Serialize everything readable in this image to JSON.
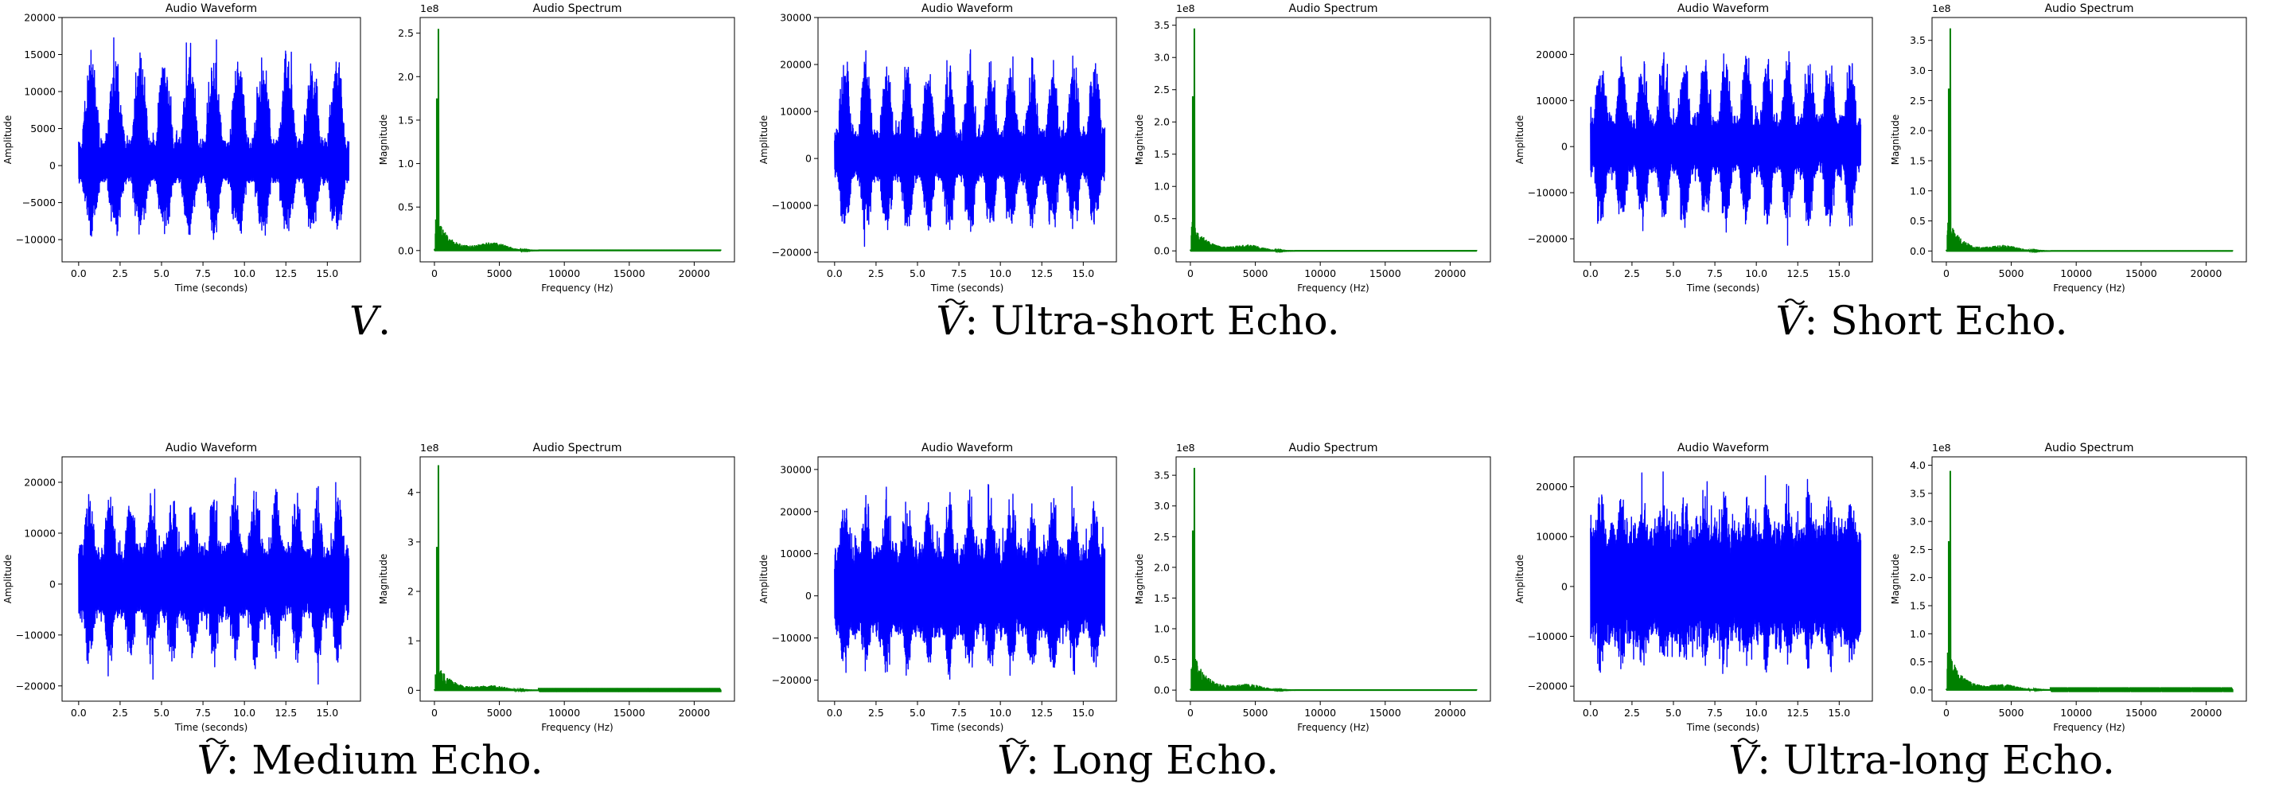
{
  "colors": {
    "waveform": "#0000ff",
    "spectrum": "#008000"
  },
  "chart_data": [
    {
      "caption": {
        "symbol": "V",
        "tilde": false,
        "text": "."
      },
      "waveform": {
        "type": "line",
        "title": "Audio Waveform",
        "xlabel": "Time (seconds)",
        "ylabel": "Amplitude",
        "xlim": [
          -1.0,
          17.0
        ],
        "ylim": [
          -13000,
          20000
        ],
        "xticks": [
          0.0,
          2.5,
          5.0,
          7.5,
          10.0,
          12.5,
          15.0
        ],
        "xtick_labels": [
          "0.0",
          "2.5",
          "5.0",
          "7.5",
          "10.0",
          "12.5",
          "15.0"
        ],
        "yticks": [
          -10000,
          -5000,
          0,
          5000,
          10000,
          15000,
          20000
        ],
        "ytick_labels": [
          "−10000",
          "−5000",
          "0",
          "5000",
          "10000",
          "15000",
          "20000"
        ],
        "duration": 16.3,
        "peak": 19000,
        "trough": -12000,
        "bursts": 11,
        "floor": 0.25
      },
      "spectrum": {
        "type": "line",
        "title": "Audio Spectrum",
        "xlabel": "Frequency (Hz)",
        "ylabel": "Magnitude",
        "scale_label": "1e8",
        "xlim": [
          -1100,
          23100
        ],
        "ylim": [
          -0.13,
          2.68
        ],
        "xticks": [
          0,
          5000,
          10000,
          15000,
          20000
        ],
        "xtick_labels": [
          "0",
          "5000",
          "10000",
          "15000",
          "20000"
        ],
        "yticks": [
          0.0,
          0.5,
          1.0,
          1.5,
          2.0,
          2.5
        ],
        "ytick_labels": [
          "0.0",
          "0.5",
          "1.0",
          "1.5",
          "2.0",
          "2.5"
        ],
        "fmax": 22050,
        "peak_hz": 300,
        "peak_value": 2.55,
        "secondary_value": 1.75,
        "tail_value": 0.45
      }
    },
    {
      "caption": {
        "symbol": "V",
        "tilde": true,
        "text": ": Ultra-short Echo."
      },
      "waveform": {
        "type": "line",
        "title": "Audio Waveform",
        "xlabel": "Time (seconds)",
        "ylabel": "Amplitude",
        "xlim": [
          -1.0,
          17.0
        ],
        "ylim": [
          -22000,
          30000
        ],
        "xticks": [
          0.0,
          2.5,
          5.0,
          7.5,
          10.0,
          12.5,
          15.0
        ],
        "xtick_labels": [
          "0.0",
          "2.5",
          "5.0",
          "7.5",
          "10.0",
          "12.5",
          "15.0"
        ],
        "yticks": [
          -20000,
          -10000,
          0,
          10000,
          20000,
          30000
        ],
        "ytick_labels": [
          "−20000",
          "−10000",
          "0",
          "10000",
          "20000",
          "30000"
        ],
        "duration": 16.3,
        "peak": 27000,
        "trough": -20000,
        "bursts": 13,
        "floor": 0.3
      },
      "spectrum": {
        "type": "line",
        "title": "Audio Spectrum",
        "xlabel": "Frequency (Hz)",
        "ylabel": "Magnitude",
        "scale_label": "1e8",
        "xlim": [
          -1100,
          23100
        ],
        "ylim": [
          -0.17,
          3.62
        ],
        "xticks": [
          0,
          5000,
          10000,
          15000,
          20000
        ],
        "xtick_labels": [
          "0",
          "5000",
          "10000",
          "15000",
          "20000"
        ],
        "yticks": [
          0.0,
          0.5,
          1.0,
          1.5,
          2.0,
          2.5,
          3.0,
          3.5
        ],
        "ytick_labels": [
          "0.0",
          "0.5",
          "1.0",
          "1.5",
          "2.0",
          "2.5",
          "3.0",
          "3.5"
        ],
        "fmax": 22050,
        "peak_hz": 300,
        "peak_value": 3.45,
        "secondary_value": 2.4,
        "tail_value": 0.55
      }
    },
    {
      "caption": {
        "symbol": "V",
        "tilde": true,
        "text": ": Short Echo."
      },
      "waveform": {
        "type": "line",
        "title": "Audio Waveform",
        "xlabel": "Time (seconds)",
        "ylabel": "Amplitude",
        "xlim": [
          -1.0,
          17.0
        ],
        "ylim": [
          -25000,
          28000
        ],
        "xticks": [
          0.0,
          2.5,
          5.0,
          7.5,
          10.0,
          12.5,
          15.0
        ],
        "xtick_labels": [
          "0.0",
          "2.5",
          "5.0",
          "7.5",
          "10.0",
          "12.5",
          "15.0"
        ],
        "yticks": [
          -20000,
          -10000,
          0,
          10000,
          20000
        ],
        "ytick_labels": [
          "−20000",
          "−10000",
          "0",
          "10000",
          "20000"
        ],
        "duration": 16.3,
        "peak": 25000,
        "trough": -22000,
        "bursts": 13,
        "floor": 0.35
      },
      "spectrum": {
        "type": "line",
        "title": "Audio Spectrum",
        "xlabel": "Frequency (Hz)",
        "ylabel": "Magnitude",
        "scale_label": "1e8",
        "xlim": [
          -1100,
          23100
        ],
        "ylim": [
          -0.18,
          3.88
        ],
        "xticks": [
          0,
          5000,
          10000,
          15000,
          20000
        ],
        "xtick_labels": [
          "0",
          "5000",
          "10000",
          "15000",
          "20000"
        ],
        "yticks": [
          0.0,
          0.5,
          1.0,
          1.5,
          2.0,
          2.5,
          3.0,
          3.5
        ],
        "ytick_labels": [
          "0.0",
          "0.5",
          "1.0",
          "1.5",
          "2.0",
          "2.5",
          "3.0",
          "3.5"
        ],
        "fmax": 22050,
        "peak_hz": 300,
        "peak_value": 3.7,
        "secondary_value": 2.7,
        "tail_value": 0.6
      }
    },
    {
      "caption": {
        "symbol": "V",
        "tilde": true,
        "text": ": Medium Echo."
      },
      "waveform": {
        "type": "line",
        "title": "Audio Waveform",
        "xlabel": "Time (seconds)",
        "ylabel": "Amplitude",
        "xlim": [
          -1.0,
          17.0
        ],
        "ylim": [
          -23000,
          25000
        ],
        "xticks": [
          0.0,
          2.5,
          5.0,
          7.5,
          10.0,
          12.5,
          15.0
        ],
        "xtick_labels": [
          "0.0",
          "2.5",
          "5.0",
          "7.5",
          "10.0",
          "12.5",
          "15.0"
        ],
        "yticks": [
          -20000,
          -10000,
          0,
          10000,
          20000
        ],
        "ytick_labels": [
          "−20000",
          "−10000",
          "0",
          "10000",
          "20000"
        ],
        "duration": 16.3,
        "peak": 23000,
        "trough": -20000,
        "bursts": 13,
        "floor": 0.45
      },
      "spectrum": {
        "type": "line",
        "title": "Audio Spectrum",
        "xlabel": "Frequency (Hz)",
        "ylabel": "Magnitude",
        "scale_label": "1e8",
        "xlim": [
          -1100,
          23100
        ],
        "ylim": [
          -0.22,
          4.72
        ],
        "xticks": [
          0,
          5000,
          10000,
          15000,
          20000
        ],
        "xtick_labels": [
          "0",
          "5000",
          "10000",
          "15000",
          "20000"
        ],
        "yticks": [
          0,
          1,
          2,
          3,
          4
        ],
        "ytick_labels": [
          "0",
          "1",
          "2",
          "3",
          "4"
        ],
        "fmax": 22050,
        "peak_hz": 300,
        "peak_value": 4.55,
        "secondary_value": 2.9,
        "tail_value": 0.7
      }
    },
    {
      "caption": {
        "symbol": "V",
        "tilde": true,
        "text": ": Long Echo."
      },
      "waveform": {
        "type": "line",
        "title": "Audio Waveform",
        "xlabel": "Time (seconds)",
        "ylabel": "Amplitude",
        "xlim": [
          -1.0,
          17.0
        ],
        "ylim": [
          -25000,
          33000
        ],
        "xticks": [
          0.0,
          2.5,
          5.0,
          7.5,
          10.0,
          12.5,
          15.0
        ],
        "xtick_labels": [
          "0.0",
          "2.5",
          "5.0",
          "7.5",
          "10.0",
          "12.5",
          "15.0"
        ],
        "yticks": [
          -20000,
          -10000,
          0,
          10000,
          20000,
          30000
        ],
        "ytick_labels": [
          "−20000",
          "−10000",
          "0",
          "10000",
          "20000",
          "30000"
        ],
        "duration": 16.3,
        "peak": 30000,
        "trough": -23000,
        "bursts": 13,
        "floor": 0.55
      },
      "spectrum": {
        "type": "line",
        "title": "Audio Spectrum",
        "xlabel": "Frequency (Hz)",
        "ylabel": "Magnitude",
        "scale_label": "1e8",
        "xlim": [
          -1100,
          23100
        ],
        "ylim": [
          -0.18,
          3.8
        ],
        "xticks": [
          0,
          5000,
          10000,
          15000,
          20000
        ],
        "xtick_labels": [
          "0",
          "5000",
          "10000",
          "15000",
          "20000"
        ],
        "yticks": [
          0.0,
          0.5,
          1.0,
          1.5,
          2.0,
          2.5,
          3.0,
          3.5
        ],
        "ytick_labels": [
          "0.0",
          "0.5",
          "1.0",
          "1.5",
          "2.0",
          "2.5",
          "3.0",
          "3.5"
        ],
        "fmax": 22050,
        "peak_hz": 300,
        "peak_value": 3.62,
        "secondary_value": 2.6,
        "tail_value": 0.75
      }
    },
    {
      "caption": {
        "symbol": "V",
        "tilde": true,
        "text": ": Ultra-long Echo."
      },
      "waveform": {
        "type": "line",
        "title": "Audio Waveform",
        "xlabel": "Time (seconds)",
        "ylabel": "Amplitude",
        "xlim": [
          -1.0,
          17.0
        ],
        "ylim": [
          -23000,
          26000
        ],
        "xticks": [
          0.0,
          2.5,
          5.0,
          7.5,
          10.0,
          12.5,
          15.0
        ],
        "xtick_labels": [
          "0.0",
          "2.5",
          "5.0",
          "7.5",
          "10.0",
          "12.5",
          "15.0"
        ],
        "yticks": [
          -20000,
          -10000,
          0,
          10000,
          20000
        ],
        "ytick_labels": [
          "−20000",
          "−10000",
          "0",
          "10000",
          "20000"
        ],
        "duration": 16.3,
        "peak": 24000,
        "trough": -21000,
        "bursts": 13,
        "floor": 0.7
      },
      "spectrum": {
        "type": "line",
        "title": "Audio Spectrum",
        "xlabel": "Frequency (Hz)",
        "ylabel": "Magnitude",
        "scale_label": "1e8",
        "xlim": [
          -1100,
          23100
        ],
        "ylim": [
          -0.2,
          4.15
        ],
        "xticks": [
          0,
          5000,
          10000,
          15000,
          20000
        ],
        "xtick_labels": [
          "0",
          "5000",
          "10000",
          "15000",
          "20000"
        ],
        "yticks": [
          0.0,
          0.5,
          1.0,
          1.5,
          2.0,
          2.5,
          3.0,
          3.5,
          4.0
        ],
        "ytick_labels": [
          "0.0",
          "0.5",
          "1.0",
          "1.5",
          "2.0",
          "2.5",
          "3.0",
          "3.5",
          "4.0"
        ],
        "fmax": 22050,
        "peak_hz": 300,
        "peak_value": 3.9,
        "secondary_value": 2.65,
        "tail_value": 0.8
      }
    }
  ]
}
